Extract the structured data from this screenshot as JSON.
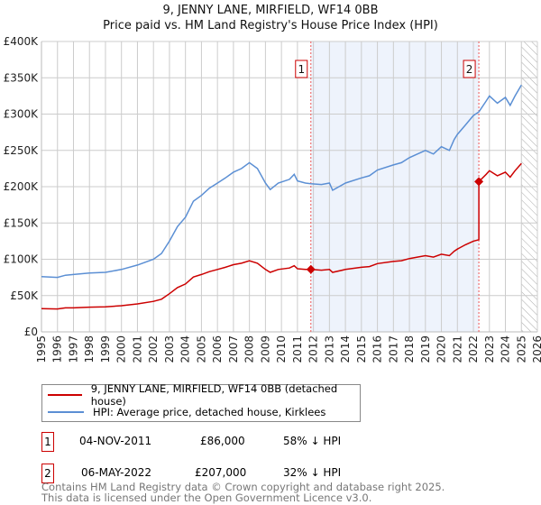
{
  "chart_data": {
    "type": "line",
    "title": "9, JENNY LANE, MIRFIELD, WF14 0BB",
    "subtitle": "Price paid vs. HM Land Registry's House Price Index (HPI)",
    "xlim": [
      1995,
      2026
    ],
    "ylim": [
      0,
      400000
    ],
    "x_ticks": [
      "1995",
      "1996",
      "1997",
      "1998",
      "1999",
      "2000",
      "2001",
      "2002",
      "2003",
      "2004",
      "2005",
      "2006",
      "2007",
      "2008",
      "2009",
      "2010",
      "2011",
      "2012",
      "2013",
      "2014",
      "2015",
      "2016",
      "2017",
      "2018",
      "2019",
      "2020",
      "2021",
      "2022",
      "2023",
      "2024",
      "2025",
      "2026"
    ],
    "y_ticks": [
      {
        "v": 0,
        "label": "£0"
      },
      {
        "v": 50000,
        "label": "£50K"
      },
      {
        "v": 100000,
        "label": "£100K"
      },
      {
        "v": 150000,
        "label": "£150K"
      },
      {
        "v": 200000,
        "label": "£200K"
      },
      {
        "v": 250000,
        "label": "£250K"
      },
      {
        "v": 300000,
        "label": "£300K"
      },
      {
        "v": 350000,
        "label": "£350K"
      },
      {
        "v": 400000,
        "label": "£400K"
      }
    ],
    "grid": true,
    "shaded_range": [
      2011.84,
      2022.34
    ],
    "forecast_hatch_from": 2025.0,
    "series": [
      {
        "name": "9, JENNY LANE, MIRFIELD, WF14 0BB (detached house)",
        "color": "#cc0000",
        "x": [
          1995,
          1996,
          1996.5,
          1997,
          1998,
          1999,
          2000,
          2001,
          2002,
          2002.5,
          2003,
          2003.5,
          2004,
          2004.5,
          2005,
          2005.5,
          2006,
          2006.5,
          2007,
          2007.5,
          2008,
          2008.5,
          2009,
          2009.3,
          2009.8,
          2010.5,
          2010.8,
          2011,
          2011.5,
          2011.84,
          2012.5,
          2013,
          2013.2,
          2014,
          2015,
          2015.5,
          2016,
          2017,
          2017.5,
          2018,
          2018.5,
          2019,
          2019.5,
          2020,
          2020.5,
          2020.8,
          2021,
          2021.5,
          2022,
          2022.34,
          2022.341,
          2022.8,
          2023,
          2023.5,
          2024,
          2024.3,
          2024.6,
          2025
        ],
        "y": [
          32,
          31.5,
          33,
          33,
          34,
          34.5,
          36,
          38.5,
          42,
          45,
          52.5,
          61,
          66,
          75.5,
          79,
          83,
          86,
          89,
          92.5,
          94.5,
          98,
          94.5,
          86,
          82,
          86,
          88,
          91,
          87,
          86,
          86,
          85,
          86,
          82,
          86,
          89,
          90,
          94,
          97,
          98,
          101,
          103,
          105,
          103,
          107,
          105,
          111,
          114,
          120,
          125,
          127,
          207,
          217,
          222,
          215,
          220,
          213,
          222,
          232
        ]
      },
      {
        "name": "HPI: Average price, detached house, Kirklees",
        "color": "#5b8fd4",
        "x": [
          1995,
          1996,
          1996.5,
          1997,
          1998,
          1999,
          2000,
          2001,
          2002,
          2002.5,
          2003,
          2003.5,
          2004,
          2004.5,
          2005,
          2005.5,
          2006,
          2006.5,
          2007,
          2007.5,
          2008,
          2008.5,
          2009,
          2009.3,
          2009.8,
          2010.5,
          2010.8,
          2011,
          2011.5,
          2011.84,
          2012.5,
          2013,
          2013.2,
          2014,
          2015,
          2015.5,
          2016,
          2017,
          2017.5,
          2018,
          2018.5,
          2019,
          2019.5,
          2020,
          2020.5,
          2020.8,
          2021,
          2021.5,
          2022,
          2022.34,
          2022.8,
          2023,
          2023.5,
          2024,
          2024.3,
          2024.6,
          2025
        ],
        "y": [
          76,
          75,
          78,
          79,
          81,
          82,
          86,
          92,
          100,
          108,
          125,
          145,
          158,
          180,
          188,
          198,
          205,
          212,
          220,
          225,
          233,
          225,
          205,
          196,
          205,
          210,
          217,
          208,
          205,
          204,
          203,
          205,
          195,
          205,
          212,
          215,
          223,
          230,
          233,
          240,
          245,
          250,
          245,
          255,
          250,
          265,
          272,
          285,
          298,
          303,
          318,
          325,
          315,
          323,
          312,
          325,
          340
        ]
      }
    ],
    "y_unit": "thousands GBP",
    "annotations": [
      {
        "label": "1",
        "x": 2011.84,
        "y": 86
      },
      {
        "label": "2",
        "x": 2022.34,
        "y": 207
      }
    ]
  },
  "colors": {
    "red": "#cc0000",
    "blue": "#5b8fd4",
    "shade": "#eef3fc"
  },
  "legend": {
    "red": "9, JENNY LANE, MIRFIELD, WF14 0BB (detached house)",
    "blue": "HPI: Average price, detached house, Kirklees"
  },
  "transactions": [
    {
      "num": "1",
      "date": "04-NOV-2011",
      "price": "£86,000",
      "delta": "58% ↓ HPI"
    },
    {
      "num": "2",
      "date": "06-MAY-2022",
      "price": "£207,000",
      "delta": "32% ↓ HPI"
    }
  ],
  "footer": {
    "line1": "Contains HM Land Registry data © Crown copyright and database right 2025.",
    "line2": "This data is licensed under the Open Government Licence v3.0."
  }
}
